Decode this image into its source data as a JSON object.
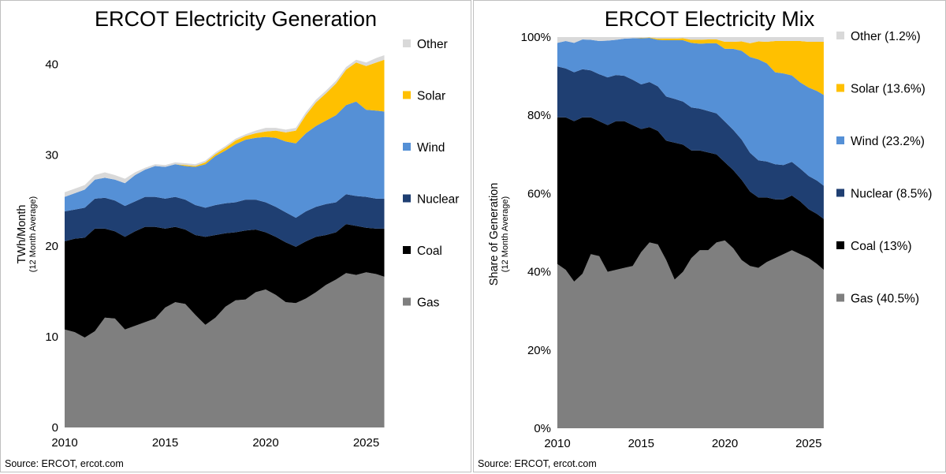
{
  "colors": {
    "Gas": "#7f7f7f",
    "Coal": "#000000",
    "Nuclear": "#1f3f72",
    "Wind": "#5590d6",
    "Solar": "#ffc000",
    "Other": "#d9d9d9"
  },
  "source": "Source: ERCOT, ercot.com",
  "chart_data": [
    {
      "type": "area",
      "stacked": true,
      "title": "ERCOT Electricity Generation",
      "ylabel": "TWh/Month",
      "ylabel_sub": "(12 Month Average)",
      "xlabel": "",
      "xlim": [
        2010,
        2026
      ],
      "ylim": [
        0,
        43
      ],
      "xticks": [
        "2010",
        "2015",
        "2020",
        "2025"
      ],
      "yticks": [
        "0",
        "10",
        "20",
        "30",
        "40"
      ],
      "legend": [
        "Other",
        "Solar",
        "Wind",
        "Nuclear",
        "Coal",
        "Gas"
      ],
      "x": [
        2010.0,
        2010.5,
        2011.0,
        2011.5,
        2012.0,
        2012.5,
        2013.0,
        2013.5,
        2014.0,
        2014.5,
        2015.0,
        2015.5,
        2016.0,
        2016.5,
        2017.0,
        2017.5,
        2018.0,
        2018.5,
        2019.0,
        2019.5,
        2020.0,
        2020.5,
        2021.0,
        2021.5,
        2022.0,
        2022.5,
        2023.0,
        2023.5,
        2024.0,
        2024.5,
        2025.0,
        2025.5,
        2025.9
      ],
      "series": [
        {
          "name": "Gas",
          "values": [
            10.8,
            10.5,
            9.9,
            10.6,
            12.1,
            12.0,
            10.8,
            11.2,
            11.6,
            12.0,
            13.2,
            13.8,
            13.6,
            12.4,
            11.3,
            12.1,
            13.3,
            14.0,
            14.1,
            14.9,
            15.2,
            14.6,
            13.8,
            13.7,
            14.2,
            14.9,
            15.7,
            16.3,
            17.0,
            16.8,
            17.1,
            16.9,
            16.6
          ]
        },
        {
          "name": "Coal",
          "values": [
            9.7,
            10.3,
            11.0,
            11.3,
            9.8,
            9.6,
            10.2,
            10.4,
            10.5,
            10.1,
            8.7,
            8.3,
            8.2,
            8.8,
            9.7,
            9.1,
            8.1,
            7.5,
            7.6,
            6.9,
            6.3,
            6.4,
            6.6,
            6.2,
            6.3,
            6.1,
            5.5,
            5.2,
            5.4,
            5.4,
            4.9,
            5.0,
            5.3
          ]
        },
        {
          "name": "Nuclear",
          "values": [
            3.3,
            3.2,
            3.3,
            3.3,
            3.4,
            3.4,
            3.4,
            3.3,
            3.3,
            3.3,
            3.3,
            3.3,
            3.3,
            3.3,
            3.2,
            3.3,
            3.3,
            3.3,
            3.4,
            3.3,
            3.3,
            3.3,
            3.3,
            3.2,
            3.3,
            3.3,
            3.4,
            3.3,
            3.3,
            3.3,
            3.4,
            3.3,
            3.3
          ]
        },
        {
          "name": "Wind",
          "values": [
            1.6,
            1.8,
            2.0,
            2.1,
            2.2,
            2.3,
            2.5,
            2.9,
            3.0,
            3.4,
            3.5,
            3.6,
            3.7,
            4.2,
            4.8,
            5.4,
            5.8,
            6.4,
            6.6,
            6.8,
            7.2,
            7.6,
            7.8,
            8.2,
            8.6,
            8.9,
            9.2,
            9.6,
            9.8,
            10.4,
            9.6,
            9.7,
            9.6
          ]
        },
        {
          "name": "Solar",
          "values": [
            0.0,
            0.0,
            0.0,
            0.0,
            0.0,
            0.0,
            0.0,
            0.0,
            0.0,
            0.0,
            0.0,
            0.0,
            0.1,
            0.1,
            0.2,
            0.2,
            0.3,
            0.4,
            0.4,
            0.5,
            0.6,
            0.8,
            1.0,
            1.4,
            2.0,
            2.6,
            3.0,
            3.5,
            3.9,
            4.3,
            4.8,
            5.3,
            5.7
          ]
        },
        {
          "name": "Other",
          "values": [
            0.5,
            0.5,
            0.5,
            0.5,
            0.6,
            0.5,
            0.5,
            0.3,
            0.2,
            0.2,
            0.2,
            0.2,
            0.2,
            0.2,
            0.2,
            0.2,
            0.2,
            0.2,
            0.2,
            0.3,
            0.4,
            0.3,
            0.3,
            0.3,
            0.3,
            0.3,
            0.3,
            0.3,
            0.3,
            0.3,
            0.4,
            0.5,
            0.5
          ]
        }
      ]
    },
    {
      "type": "area",
      "stacked": true,
      "title": "ERCOT Electricity Mix",
      "ylabel": "Share of Generation",
      "ylabel_sub": "(12 Month Average)",
      "xlabel": "",
      "xlim": [
        2010,
        2026
      ],
      "ylim": [
        0,
        100
      ],
      "xticks": [
        "2010",
        "2015",
        "2020",
        "2025"
      ],
      "yticks": [
        "0%",
        "20%",
        "40%",
        "60%",
        "80%",
        "100%"
      ],
      "legend": [
        "Other (1.2%)",
        "Solar (13.6%)",
        "Wind (23.2%)",
        "Nuclear (8.5%)",
        "Coal (13%)",
        "Gas (40.5%)"
      ],
      "x": [
        2010.0,
        2010.5,
        2011.0,
        2011.5,
        2012.0,
        2012.5,
        2013.0,
        2013.5,
        2014.0,
        2014.5,
        2015.0,
        2015.5,
        2016.0,
        2016.5,
        2017.0,
        2017.5,
        2018.0,
        2018.5,
        2019.0,
        2019.5,
        2020.0,
        2020.5,
        2021.0,
        2021.5,
        2022.0,
        2022.5,
        2023.0,
        2023.5,
        2024.0,
        2024.5,
        2025.0,
        2025.5,
        2025.9
      ],
      "series": [
        {
          "name": "Gas",
          "values": [
            42.0,
            40.5,
            37.5,
            39.5,
            44.5,
            44.0,
            40.0,
            40.5,
            41.0,
            41.5,
            45.0,
            47.5,
            47.0,
            43.0,
            38.0,
            40.0,
            43.5,
            45.5,
            45.5,
            47.5,
            48.0,
            46.0,
            43.0,
            41.5,
            41.0,
            42.5,
            43.5,
            44.5,
            45.5,
            44.5,
            43.5,
            42.0,
            40.5
          ]
        },
        {
          "name": "Coal",
          "values": [
            37.5,
            39.0,
            41.0,
            40.0,
            35.0,
            34.5,
            37.5,
            38.0,
            37.5,
            36.0,
            31.5,
            29.5,
            29.0,
            30.5,
            35.0,
            32.5,
            27.5,
            25.5,
            25.0,
            22.5,
            20.0,
            20.0,
            20.5,
            19.0,
            18.0,
            16.5,
            15.0,
            14.0,
            14.0,
            13.5,
            12.5,
            12.8,
            13.0
          ]
        },
        {
          "name": "Nuclear",
          "values": [
            13.0,
            12.5,
            12.5,
            12.3,
            12.0,
            12.0,
            12.2,
            11.8,
            11.6,
            11.6,
            11.4,
            11.5,
            11.4,
            11.3,
            11.2,
            11.0,
            11.0,
            10.7,
            10.6,
            10.5,
            10.4,
            10.3,
            10.3,
            9.9,
            9.5,
            9.2,
            9.0,
            8.8,
            8.6,
            8.4,
            8.5,
            8.5,
            8.5
          ]
        },
        {
          "name": "Wind",
          "values": [
            6.0,
            7.0,
            7.5,
            7.6,
            7.8,
            8.5,
            9.4,
            9.0,
            9.5,
            10.6,
            11.8,
            11.3,
            11.9,
            14.4,
            15.0,
            15.7,
            16.5,
            16.6,
            17.3,
            17.9,
            18.6,
            20.7,
            22.7,
            24.5,
            25.8,
            25.1,
            23.5,
            23.4,
            22.1,
            22.0,
            22.6,
            22.9,
            23.2
          ]
        },
        {
          "name": "Solar",
          "values": [
            0.0,
            0.0,
            0.0,
            0.0,
            0.0,
            0.0,
            0.0,
            0.0,
            0.0,
            0.0,
            0.1,
            0.1,
            0.3,
            0.4,
            0.4,
            0.5,
            0.8,
            1.0,
            1.0,
            1.0,
            1.8,
            1.8,
            2.4,
            3.5,
            4.6,
            5.5,
            8.0,
            8.3,
            8.8,
            10.6,
            11.7,
            12.6,
            13.6
          ]
        },
        {
          "name": "Other",
          "values": [
            1.5,
            1.0,
            1.5,
            0.6,
            0.7,
            1.0,
            0.9,
            0.7,
            0.4,
            0.3,
            0.2,
            0.1,
            0.4,
            0.4,
            0.4,
            0.3,
            0.7,
            0.7,
            0.6,
            0.6,
            1.2,
            1.2,
            1.1,
            1.6,
            1.1,
            1.2,
            1.0,
            1.0,
            1.0,
            1.0,
            1.2,
            1.2,
            1.2
          ]
        }
      ]
    }
  ]
}
